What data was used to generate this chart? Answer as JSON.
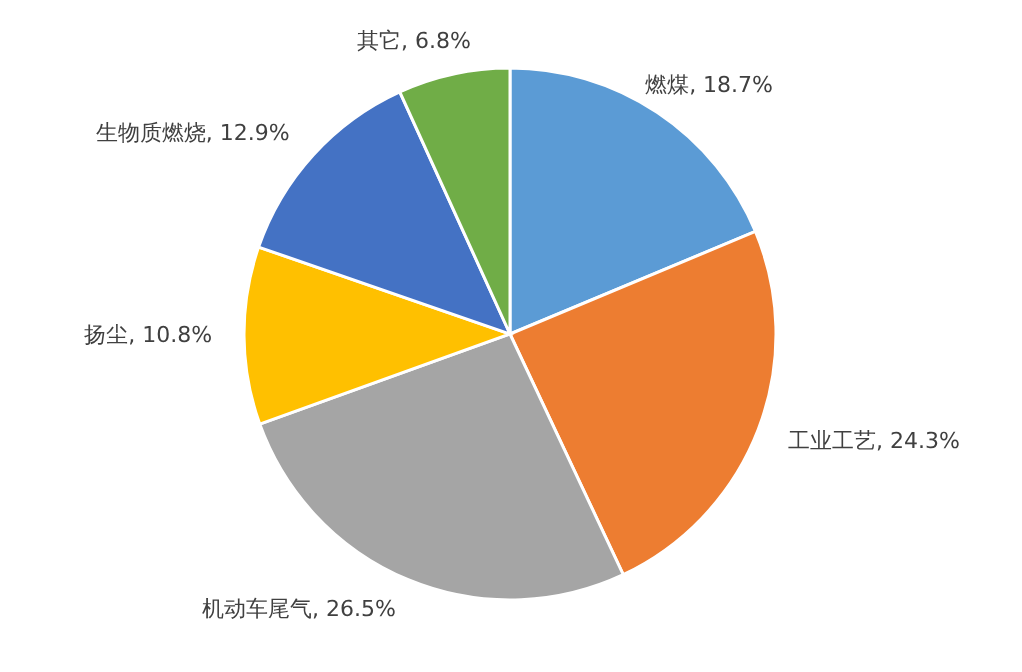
{
  "chart_data": {
    "type": "pie",
    "categories": [
      "燃煤",
      "工业工艺",
      "机动车尾气",
      "扬尘",
      "生物质燃烧",
      "其它"
    ],
    "values": [
      18.7,
      24.3,
      26.5,
      10.8,
      12.9,
      6.8
    ],
    "value_labels": [
      "18.7%",
      "24.3%",
      "26.5%",
      "10.8%",
      "12.9%",
      "6.8%"
    ],
    "colors": [
      "#5b9bd5",
      "#ed7d31",
      "#a5a5a5",
      "#ffc000",
      "#4472c4",
      "#70ad47"
    ]
  }
}
